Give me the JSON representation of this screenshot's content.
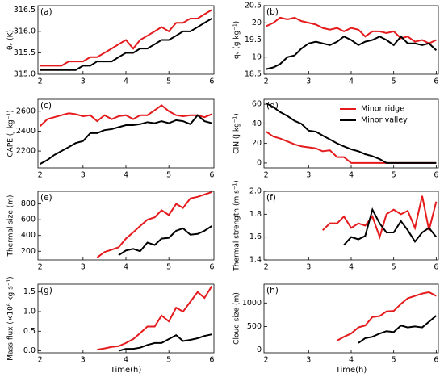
{
  "chart_data": [
    {
      "type": "line",
      "label": "(a)",
      "ylabel": "θᵥ (K)",
      "x": [
        2,
        2.17,
        2.33,
        2.5,
        2.67,
        2.83,
        3,
        3.17,
        3.33,
        3.5,
        3.67,
        3.83,
        4,
        4.17,
        4.33,
        4.5,
        4.67,
        4.83,
        5,
        5.17,
        5.33,
        5.5,
        5.67,
        5.83,
        6
      ],
      "xlim": [
        1.95,
        6.05
      ],
      "xticks": [
        2,
        3,
        4,
        5,
        6
      ],
      "ylim": [
        315,
        316.6
      ],
      "yticks": [
        {
          "value": 315,
          "label": "315.0"
        },
        315.5,
        {
          "value": 316,
          "label": "316.0"
        },
        316.5
      ],
      "series": [
        {
          "color": "#e41a1c",
          "values": [
            315.2,
            315.2,
            315.2,
            315.2,
            315.3,
            315.3,
            315.3,
            315.4,
            315.4,
            315.5,
            315.6,
            315.7,
            315.8,
            315.6,
            315.8,
            315.9,
            316.0,
            316.1,
            316.0,
            316.2,
            316.2,
            316.3,
            316.3,
            316.4,
            316.5
          ]
        },
        {
          "color": "#000000",
          "values": [
            315.1,
            315.1,
            315.1,
            315.1,
            315.1,
            315.1,
            315.2,
            315.2,
            315.3,
            315.3,
            315.3,
            315.4,
            315.5,
            315.5,
            315.6,
            315.6,
            315.7,
            315.8,
            315.8,
            315.9,
            316.0,
            316.0,
            316.1,
            316.2,
            316.3
          ]
        }
      ]
    },
    {
      "type": "line",
      "label": "(b)",
      "ylabel": "qᵥ (g kg⁻¹)",
      "x": [
        2,
        2.17,
        2.33,
        2.5,
        2.67,
        2.83,
        3,
        3.17,
        3.33,
        3.5,
        3.67,
        3.83,
        4,
        4.17,
        4.33,
        4.5,
        4.67,
        4.83,
        5,
        5.17,
        5.33,
        5.5,
        5.67,
        5.83,
        6
      ],
      "xlim": [
        1.95,
        6.05
      ],
      "xticks": [
        2,
        3,
        4,
        5,
        6
      ],
      "ylim": [
        18.5,
        20.5
      ],
      "yticks": [
        18.5,
        19,
        19.5,
        20,
        20.5
      ],
      "series": [
        {
          "color": "#e41a1c",
          "values": [
            19.9,
            20.0,
            20.15,
            20.1,
            20.15,
            20.05,
            20.0,
            19.95,
            19.85,
            19.8,
            19.85,
            19.75,
            19.85,
            19.8,
            19.6,
            19.75,
            19.75,
            19.7,
            19.75,
            19.55,
            19.6,
            19.45,
            19.5,
            19.4,
            19.5
          ]
        },
        {
          "color": "#000000",
          "values": [
            18.65,
            18.7,
            18.8,
            19.0,
            19.05,
            19.25,
            19.4,
            19.45,
            19.4,
            19.35,
            19.45,
            19.6,
            19.5,
            19.35,
            19.45,
            19.5,
            19.6,
            19.5,
            19.35,
            19.6,
            19.4,
            19.4,
            19.35,
            19.4,
            19.2
          ]
        }
      ]
    },
    {
      "type": "line",
      "label": "(c)",
      "ylabel": "CAPE (J kg⁻¹)",
      "x": [
        2,
        2.17,
        2.33,
        2.5,
        2.67,
        2.83,
        3,
        3.17,
        3.33,
        3.5,
        3.67,
        3.83,
        4,
        4.17,
        4.33,
        4.5,
        4.67,
        4.83,
        5,
        5.17,
        5.33,
        5.5,
        5.67,
        5.83,
        6
      ],
      "xlim": [
        1.95,
        6.05
      ],
      "xticks": [
        2,
        3,
        4,
        5,
        6
      ],
      "ylim": [
        2030,
        2720
      ],
      "yticks": [
        2200,
        2400,
        2600
      ],
      "series": [
        {
          "color": "#e41a1c",
          "values": [
            2450,
            2520,
            2540,
            2560,
            2580,
            2570,
            2550,
            2560,
            2500,
            2560,
            2520,
            2550,
            2560,
            2520,
            2560,
            2560,
            2610,
            2660,
            2600,
            2560,
            2550,
            2560,
            2560,
            2540,
            2570
          ]
        },
        {
          "color": "#000000",
          "values": [
            2070,
            2110,
            2160,
            2200,
            2240,
            2280,
            2300,
            2380,
            2380,
            2410,
            2420,
            2440,
            2460,
            2460,
            2470,
            2490,
            2480,
            2500,
            2480,
            2510,
            2500,
            2470,
            2560,
            2500,
            2480
          ]
        }
      ]
    },
    {
      "type": "line",
      "label": "(d)",
      "ylabel": "CIN (J kg⁻¹)",
      "legend": "upper right",
      "x": [
        2,
        2.17,
        2.33,
        2.5,
        2.67,
        2.83,
        3,
        3.17,
        3.33,
        3.5,
        3.67,
        3.83,
        4,
        4.17,
        4.33,
        4.5,
        4.67,
        4.83,
        5,
        5.17,
        5.33,
        5.5,
        5.67,
        5.83,
        6
      ],
      "xlim": [
        1.95,
        6.05
      ],
      "xticks": [
        2,
        3,
        4,
        5,
        6
      ],
      "ylim": [
        -5,
        65
      ],
      "yticks": [
        0,
        20,
        40,
        60
      ],
      "series": [
        {
          "name": "Minor ridge",
          "color": "#e41a1c",
          "values": [
            32,
            27,
            25,
            22,
            19,
            17,
            16,
            15,
            12,
            13,
            6,
            6,
            0,
            0,
            0,
            0,
            0,
            0,
            0,
            0,
            0,
            0,
            0,
            0,
            0
          ]
        },
        {
          "name": "Minor valley",
          "color": "#000000",
          "values": [
            61,
            57,
            52,
            48,
            43,
            40,
            33,
            32,
            28,
            24,
            20,
            17,
            14,
            12,
            9,
            7,
            4,
            0,
            0,
            0,
            0,
            0,
            0,
            0,
            0
          ]
        }
      ]
    },
    {
      "type": "line",
      "label": "(e)",
      "ylabel": "Thermal size (m)",
      "x": [
        2,
        2.17,
        2.33,
        2.5,
        2.67,
        2.83,
        3,
        3.17,
        3.33,
        3.5,
        3.67,
        3.83,
        4,
        4.17,
        4.33,
        4.5,
        4.67,
        4.83,
        5,
        5.17,
        5.33,
        5.5,
        5.67,
        5.83,
        6
      ],
      "xlim": [
        1.95,
        6.05
      ],
      "xticks": [
        2,
        3,
        4,
        5,
        6
      ],
      "ylim": [
        90,
        960
      ],
      "yticks": [
        200,
        400,
        600,
        800
      ],
      "series": [
        {
          "color": "#e41a1c",
          "values": [
            null,
            null,
            null,
            null,
            null,
            null,
            null,
            null,
            120,
            190,
            220,
            250,
            360,
            440,
            520,
            600,
            630,
            720,
            660,
            800,
            750,
            870,
            890,
            920,
            950
          ]
        },
        {
          "color": "#000000",
          "values": [
            null,
            null,
            null,
            null,
            null,
            null,
            null,
            null,
            null,
            null,
            null,
            150,
            210,
            230,
            200,
            310,
            280,
            360,
            370,
            460,
            490,
            410,
            420,
            460,
            520
          ]
        }
      ]
    },
    {
      "type": "line",
      "label": "(f)",
      "ylabel": "Thermal strength (m s⁻¹)",
      "x": [
        2,
        2.17,
        2.33,
        2.5,
        2.67,
        2.83,
        3,
        3.17,
        3.33,
        3.5,
        3.67,
        3.83,
        4,
        4.17,
        4.33,
        4.5,
        4.67,
        4.83,
        5,
        5.17,
        5.33,
        5.5,
        5.67,
        5.83,
        6
      ],
      "xlim": [
        1.95,
        6.05
      ],
      "xticks": [
        2,
        3,
        4,
        5,
        6
      ],
      "ylim": [
        1.4,
        2.0
      ],
      "yticks": [
        1.4,
        1.6,
        1.8,
        {
          "value": 2,
          "label": "2.0"
        }
      ],
      "series": [
        {
          "color": "#e41a1c",
          "values": [
            null,
            null,
            null,
            null,
            null,
            null,
            null,
            null,
            1.66,
            1.72,
            1.72,
            1.78,
            1.68,
            1.72,
            1.7,
            1.78,
            1.6,
            1.8,
            1.84,
            1.8,
            1.83,
            1.68,
            1.96,
            1.66,
            1.91
          ]
        },
        {
          "color": "#000000",
          "values": [
            null,
            null,
            null,
            null,
            null,
            null,
            null,
            null,
            null,
            null,
            null,
            1.53,
            1.6,
            1.58,
            1.61,
            1.84,
            1.72,
            1.64,
            1.64,
            1.74,
            1.66,
            1.56,
            1.64,
            1.68,
            1.6
          ]
        }
      ]
    },
    {
      "type": "line",
      "label": "(g)",
      "ylabel": "Mass flux (×10⁶ kg s⁻¹)",
      "xlabel": "Time(h)",
      "x": [
        2,
        2.17,
        2.33,
        2.5,
        2.67,
        2.83,
        3,
        3.17,
        3.33,
        3.5,
        3.67,
        3.83,
        4,
        4.17,
        4.33,
        4.5,
        4.67,
        4.83,
        5,
        5.17,
        5.33,
        5.5,
        5.67,
        5.83,
        6
      ],
      "xlim": [
        1.95,
        6.05
      ],
      "xticks": [
        2,
        3,
        4,
        5,
        6
      ],
      "ylim": [
        -0.05,
        1.7
      ],
      "yticks": [
        {
          "value": 0,
          "label": "0.0"
        },
        0.5,
        {
          "value": 1,
          "label": "1.0"
        },
        1.5
      ],
      "series": [
        {
          "color": "#e41a1c",
          "values": [
            null,
            null,
            null,
            null,
            null,
            null,
            null,
            null,
            0.03,
            0.06,
            0.1,
            0.12,
            0.2,
            0.3,
            0.45,
            0.62,
            0.62,
            0.9,
            0.75,
            1.1,
            1.0,
            1.25,
            1.5,
            1.35,
            1.65
          ]
        },
        {
          "color": "#000000",
          "values": [
            null,
            null,
            null,
            null,
            null,
            null,
            null,
            null,
            null,
            null,
            null,
            0.0,
            0.05,
            0.05,
            0.08,
            0.15,
            0.2,
            0.2,
            0.3,
            0.4,
            0.25,
            0.28,
            0.32,
            0.38,
            0.42
          ]
        }
      ]
    },
    {
      "type": "line",
      "label": "(h)",
      "ylabel": "Cloud size (m)",
      "xlabel": "Time(h)",
      "x": [
        2,
        2.17,
        2.33,
        2.5,
        2.67,
        2.83,
        3,
        3.17,
        3.33,
        3.5,
        3.67,
        3.83,
        4,
        4.17,
        4.33,
        4.5,
        4.67,
        4.83,
        5,
        5.17,
        5.33,
        5.5,
        5.67,
        5.83,
        6
      ],
      "xlim": [
        1.95,
        6.05
      ],
      "xticks": [
        2,
        3,
        4,
        5,
        6
      ],
      "ylim": [
        -60,
        1400
      ],
      "yticks": [
        0,
        500,
        1000
      ],
      "series": [
        {
          "color": "#e41a1c",
          "values": [
            null,
            null,
            null,
            null,
            null,
            null,
            null,
            null,
            null,
            null,
            200,
            280,
            350,
            480,
            520,
            700,
            720,
            820,
            830,
            980,
            1100,
            1150,
            1200,
            1230,
            1150
          ]
        },
        {
          "color": "#000000",
          "values": [
            null,
            null,
            null,
            null,
            null,
            null,
            null,
            null,
            null,
            null,
            null,
            null,
            null,
            150,
            250,
            280,
            350,
            400,
            380,
            520,
            480,
            500,
            480,
            600,
            730
          ]
        }
      ]
    }
  ]
}
